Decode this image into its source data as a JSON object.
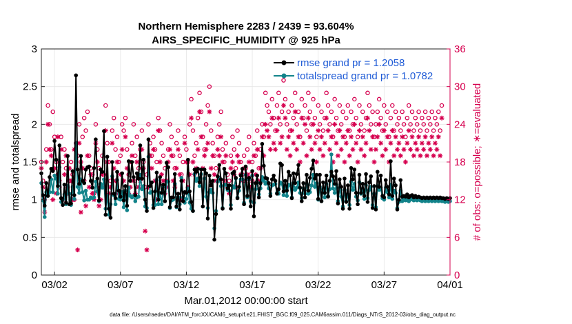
{
  "chart_data": {
    "type": "line",
    "title_line1": "Northern Hemisphere 2283 / 2439 = 93.604%",
    "title_line2": "AIRS_SPECIFIC_HUMIDITY @ 925 hPa",
    "ylabel": "rmse and totalspread",
    "ylabel_right": "# of obs: o=possible; ∗=evaluated",
    "xlabel": "Mar.01,2012 00:00:00 start",
    "footer": "data file: /Users/raeder/DAI/ATM_forcXX/CAM6_setup/f.e21.FHIST_BGC.f09_025.CAM6assim.011/Diags_NTrS_2012-03/obs_diag_output.nc",
    "xlim": [
      0.5,
      31.5
    ],
    "ylim": [
      0,
      3
    ],
    "ylim_right": [
      0,
      36
    ],
    "x_ticks": [
      {
        "value": 1.5,
        "label": "03/02"
      },
      {
        "value": 6.5,
        "label": "03/07"
      },
      {
        "value": 11.5,
        "label": "03/12"
      },
      {
        "value": 16.5,
        "label": "03/17"
      },
      {
        "value": 21.5,
        "label": "03/22"
      },
      {
        "value": 26.5,
        "label": "03/27"
      },
      {
        "value": 31.5,
        "label": "04/01"
      }
    ],
    "y_ticks": [
      "0",
      "0.5",
      "1",
      "1.5",
      "2",
      "2.5",
      "3"
    ],
    "y_ticks_right": [
      "0",
      "6",
      "12",
      "18",
      "24",
      "30",
      "36"
    ],
    "series": [
      {
        "name": "rmse",
        "legend": "rmse grand pr = 1.2058",
        "color": "#000000",
        "x_start": 0.5,
        "x_step": 0.125,
        "values": [
          1.35,
          1.06,
          0.92,
          1.22,
          1.05,
          1.3,
          1.41,
          1.38,
          1.78,
          1.53,
          1.18,
          1.72,
          1.02,
          0.93,
          1.2,
          0.96,
          1.58,
          0.94,
          0.95,
          1.38,
          1.06,
          2.65,
          1.4,
          1.21,
          1.58,
          1.25,
          1.22,
          1.4,
          1.43,
          1.44,
          1.25,
          1.16,
          1.42,
          1.8,
          1.28,
          0.99,
          1.4,
          1.37,
          1.91,
          0.8,
          1.57,
          0.88,
          0.76,
          1.5,
          1.08,
          1.02,
          1.37,
          1.12,
          1.04,
          1.35,
          0.99,
          1.18,
          0.92,
          1.51,
          1.25,
          1.5,
          1.3,
          1.06,
          1.35,
          1.28,
          1.72,
          1.28,
          1.53,
          1.0,
          0.85,
          1.8,
          1.18,
          1.23,
          0.89,
          1.11,
          1.36,
          1.0,
          1.3,
          1.09,
          1.2,
          0.98,
          1.49,
          1.43,
          0.9,
          1.03,
          1.03,
          1.34,
          0.91,
          1.08,
          0.87,
          1.25,
          0.98,
          1.1,
          1.09,
          1.53,
          1.11,
          0.97,
          0.85,
          1.4,
          1.37,
          1.41,
          1.23,
          1.4,
          0.91,
          1.4,
          1.35,
          0.75,
          1.32,
          1.19,
          1.25,
          0.47,
          0.81,
          1.31,
          1.46,
          1.27,
          0.88,
          1.41,
          1.35,
          1.15,
          1.19,
          0.88,
          1.35,
          1.37,
          1.29,
          1.02,
          1.17,
          1.32,
          1.41,
          0.94,
          1.44,
          1.05,
          1.29,
          0.91,
          1.38,
          0.78,
          1.22,
          1.32,
          1.03,
          1.22,
          1.74,
          1.45,
          1.29,
          1.28,
          1.22,
          1.05,
          1.27,
          1.32,
          1.25,
          1.08,
          1.14,
          1.48,
          1.46,
          1.11,
          1.25,
          1.12,
          1.37,
          1.32,
          1.02,
          1.35,
          1.22,
          1.34,
          1.46,
          1.16,
          0.98,
          1.22,
          1.03,
          1.33,
          1.12,
          1.29,
          1.41,
          1.52,
          1.28,
          1.33,
          1.01,
          1.33,
          0.98,
          1.23,
          1.09,
          1.32,
          1.04,
          1.25,
          1.37,
          1.31,
          1.21,
          1.38,
          0.95,
          1.27,
          1.17,
          0.88,
          1.28,
          0.97,
          1.19,
          0.88,
          1.42,
          1.27,
          1.4,
          1.09,
          0.94,
          1.33,
          1.09,
          1.21,
          1.05,
          1.34,
          0.97,
          1.23,
          1.31,
          0.89,
          1.18,
          0.87,
          1.37,
          1.17,
          1.32,
          1.05,
          1.03,
          1.26,
          1.17,
          1.07,
          1.51,
          1.05,
          1.28,
          1.19,
          0.87,
          1.0,
          1.26,
          1.04,
          1.05,
          1.04,
          1.07,
          1.03,
          1.05,
          1.06,
          1.03,
          1.05,
          1.03,
          1.04,
          1.03,
          1.02,
          1.03,
          1.02,
          1.03,
          1.02,
          1.03,
          1.02,
          1.03,
          1.02,
          1.03,
          1.02,
          1.03,
          1.02,
          1.02,
          1.01,
          1.02,
          1.01,
          1.02
        ]
      },
      {
        "name": "totalspread",
        "legend": "totalspread grand pr = 1.0782",
        "color": "#12838a",
        "x_start": 0.5,
        "x_step": 0.125,
        "values": [
          1.22,
          0.99,
          0.77,
          1.1,
          1.08,
          1.1,
          1.27,
          1.1,
          1.32,
          1.28,
          1.08,
          1.43,
          0.97,
          1.0,
          1.07,
          0.94,
          1.18,
          1.08,
          0.93,
          1.17,
          1.01,
          1.75,
          1.17,
          1.09,
          1.27,
          1.1,
          0.99,
          1.12,
          1.0,
          1.0,
          1.03,
          1.02,
          1.03,
          1.24,
          1.11,
          0.98,
          1.21,
          1.16,
          1.27,
          0.88,
          1.05,
          0.8,
          0.94,
          1.31,
          1.06,
          0.94,
          1.26,
          1.01,
          1.0,
          1.1,
          0.9,
          1.12,
          0.86,
          1.16,
          1.05,
          1.03,
          1.05,
          0.98,
          1.03,
          1.04,
          1.33,
          1.14,
          1.18,
          0.91,
          0.89,
          1.57,
          1.09,
          1.1,
          0.93,
          0.93,
          1.26,
          0.94,
          1.09,
          0.94,
          1.17,
          0.98,
          1.24,
          1.24,
          0.89,
          0.99,
          1.0,
          1.21,
          0.9,
          1.03,
          0.94,
          1.29,
          1.03,
          0.96,
          1.01,
          1.15,
          0.96,
          0.88,
          0.85,
          1.34,
          1.25,
          1.28,
          1.18,
          1.34,
          0.91,
          1.28,
          1.04,
          0.89,
          1.1,
          1.13,
          1.09,
          0.62,
          0.85,
          1.24,
          1.29,
          1.18,
          0.89,
          1.2,
          1.2,
          1.13,
          1.12,
          0.93,
          1.18,
          1.16,
          1.28,
          1.03,
          1.12,
          1.27,
          1.27,
          0.96,
          1.33,
          1.03,
          1.27,
          0.98,
          1.32,
          0.96,
          1.14,
          1.23,
          1.07,
          1.15,
          1.3,
          1.25,
          1.21,
          1.23,
          1.15,
          1.08,
          1.19,
          1.2,
          1.21,
          1.09,
          1.08,
          1.23,
          1.21,
          1.06,
          1.16,
          1.05,
          1.2,
          1.19,
          1.03,
          1.22,
          1.13,
          1.16,
          1.23,
          1.09,
          1.02,
          1.15,
          1.08,
          1.21,
          1.08,
          1.1,
          1.19,
          1.33,
          1.17,
          1.22,
          1.0,
          1.17,
          0.98,
          1.14,
          1.03,
          1.21,
          1.05,
          1.14,
          1.6,
          1.15,
          1.09,
          1.2,
          0.98,
          1.16,
          1.04,
          0.91,
          1.13,
          0.98,
          1.07,
          0.93,
          1.24,
          1.13,
          1.21,
          1.04,
          0.99,
          1.23,
          1.08,
          1.13,
          1.01,
          1.19,
          1.02,
          1.13,
          1.17,
          0.93,
          1.08,
          0.9,
          1.18,
          1.13,
          1.16,
          1.02,
          1.0,
          1.16,
          1.1,
          1.03,
          1.2,
          1.01,
          1.12,
          1.09,
          0.89,
          0.97,
          1.12,
          0.98,
          1.0,
          0.99,
          1.02,
          0.98,
          1.0,
          1.01,
          0.99,
          1.0,
          0.99,
          1.0,
          0.99,
          0.98,
          0.99,
          0.98,
          0.99,
          0.98,
          0.99,
          0.98,
          0.99,
          0.98,
          0.99,
          0.98,
          0.99,
          0.98,
          0.98,
          0.97,
          0.98,
          0.97,
          0.98
        ]
      }
    ],
    "obs_possible": {
      "name": "obs possible",
      "marker": "o",
      "color": "#d6004f",
      "x_start": 0.5,
      "x_step": 0.125,
      "values": [
        18,
        15,
        12,
        20,
        27,
        24,
        20,
        26,
        22,
        18,
        16,
        14,
        22,
        18,
        20,
        17,
        13,
        15,
        18,
        16,
        12,
        21,
        19,
        24,
        18,
        22,
        25,
        23,
        26,
        19,
        17,
        16,
        13,
        24,
        20,
        17,
        14,
        19,
        16,
        27,
        21,
        18,
        15,
        23,
        25,
        20,
        22,
        18,
        19,
        24,
        23,
        25,
        20,
        16,
        18,
        21,
        24,
        19,
        22,
        17,
        20,
        23,
        18,
        14,
        16,
        24,
        21,
        19,
        22,
        20,
        18,
        25,
        23,
        21,
        19,
        17,
        15,
        20,
        24,
        22,
        19,
        17,
        21,
        23,
        19,
        16,
        18,
        22,
        20,
        18,
        24,
        28,
        23,
        19,
        21,
        25,
        29,
        26,
        22,
        20,
        24,
        27,
        30,
        23,
        21,
        19,
        17,
        22,
        24,
        26,
        20,
        18,
        21,
        16,
        15,
        19,
        22,
        20,
        17,
        23,
        21,
        18,
        16,
        19,
        17,
        20,
        22,
        16,
        18,
        21,
        19,
        23,
        17,
        20,
        24,
        22,
        29,
        27,
        26,
        24,
        28,
        25,
        23,
        27,
        29,
        24,
        26,
        31,
        28,
        24,
        26,
        23,
        27,
        25,
        29,
        24,
        26,
        22,
        28,
        25,
        27,
        23,
        29,
        26,
        24,
        28,
        25,
        22,
        27,
        24,
        26,
        23,
        25,
        29,
        27,
        24,
        26,
        22,
        28,
        25,
        23,
        27,
        24,
        26,
        22,
        25,
        27,
        23,
        26,
        24,
        28,
        25,
        22,
        27,
        24,
        26,
        23,
        25,
        29,
        27,
        24,
        26,
        22,
        24,
        26,
        28,
        25,
        23,
        27,
        24,
        26,
        22,
        25,
        27,
        23,
        26,
        24,
        25,
        23,
        26,
        24,
        22,
        25,
        27,
        24,
        26,
        23,
        25,
        24,
        26,
        23,
        25,
        24,
        26,
        23,
        25,
        24,
        26,
        23,
        25,
        24,
        26,
        23,
        27
      ]
    },
    "obs_evaluated": {
      "name": "obs evaluated",
      "marker": "*",
      "color": "#d6004f",
      "x_start": 0.5,
      "x_step": 0.125,
      "values": [
        17,
        14,
        10,
        18,
        24,
        20,
        19,
        12,
        17,
        13,
        22,
        15,
        20,
        12,
        16,
        19,
        14,
        17,
        15,
        12,
        20,
        17,
        4,
        21,
        10,
        17,
        15,
        11,
        19,
        14,
        16,
        13,
        12,
        21,
        18,
        11,
        12,
        16,
        14,
        23,
        18,
        13,
        14,
        21,
        17,
        15,
        18,
        13,
        16,
        20,
        15,
        22,
        17,
        13,
        14,
        19,
        15,
        13,
        18,
        14,
        15,
        20,
        17,
        7,
        4,
        14,
        19,
        17,
        20,
        15,
        12,
        23,
        18,
        16,
        15,
        13,
        14,
        18,
        20,
        19,
        15,
        14,
        17,
        20,
        16,
        12,
        15,
        21,
        18,
        14,
        16,
        25,
        18,
        16,
        17,
        20,
        26,
        22,
        17,
        19,
        20,
        21,
        26,
        17,
        19,
        16,
        15,
        20,
        19,
        22,
        18,
        15,
        19,
        14,
        13,
        17,
        18,
        16,
        14,
        19,
        18,
        16,
        15,
        17,
        15,
        16,
        18,
        14,
        15,
        19,
        16,
        20,
        15,
        17,
        22,
        19,
        24,
        23,
        22,
        20,
        25,
        21,
        20,
        23,
        25,
        21,
        22,
        27,
        25,
        20,
        22,
        19,
        23,
        21,
        26,
        20,
        22,
        18,
        25,
        21,
        24,
        19,
        25,
        22,
        20,
        24,
        21,
        18,
        23,
        20,
        22,
        19,
        21,
        25,
        23,
        20,
        22,
        18,
        24,
        21,
        19,
        23,
        20,
        22,
        18,
        21,
        23,
        19,
        22,
        20,
        24,
        21,
        18,
        23,
        20,
        22,
        19,
        21,
        25,
        23,
        20,
        22,
        18,
        20,
        22,
        24,
        21,
        19,
        23,
        20,
        22,
        18,
        21,
        23,
        19,
        22,
        20,
        21,
        19,
        22,
        20,
        18,
        21,
        23,
        20,
        22,
        19,
        21,
        20,
        22,
        19,
        21,
        20,
        22,
        19,
        21,
        20,
        22,
        19,
        21,
        20,
        22,
        19,
        25
      ]
    }
  }
}
